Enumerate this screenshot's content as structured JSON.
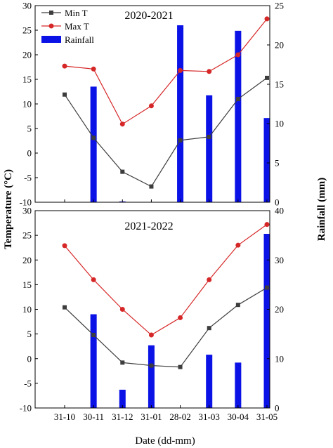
{
  "figure": {
    "left_axis_label": "Temperature (°C)",
    "right_axis_label": "Rainfall (mm)",
    "x_axis_label": "Date (dd-mm)"
  },
  "colors": {
    "min_t": "#3d3d3d",
    "max_t": "#d62728",
    "rainfall": "#0a12e6",
    "axis": "#000000"
  },
  "chart_data": [
    {
      "type": "bar+line",
      "title": "2020-2021",
      "categories": [
        "31-10",
        "30-11",
        "31-12",
        "31-01",
        "28-02",
        "31-03",
        "30-04",
        "31-05"
      ],
      "xlabel": "Date (dd-mm)",
      "ylabel": "Temperature (°C)",
      "ylim": [
        -10,
        30
      ],
      "yticks": [
        -10,
        -5,
        0,
        5,
        10,
        15,
        20,
        25,
        30
      ],
      "y2label": "Rainfall (mm)",
      "y2lim": [
        0,
        25
      ],
      "y2ticks": [
        0,
        5,
        10,
        15,
        20,
        25
      ],
      "legend": {
        "position": "top-left",
        "entries": [
          "Min T",
          "Max T",
          "Rainfall"
        ]
      },
      "series": [
        {
          "name": "Min T",
          "axis": "left",
          "kind": "line",
          "marker": "square",
          "values": [
            11.9,
            3.1,
            -3.8,
            -6.8,
            2.6,
            3.3,
            11.0,
            15.3
          ]
        },
        {
          "name": "Max T",
          "axis": "left",
          "kind": "line",
          "marker": "circle",
          "values": [
            17.7,
            17.1,
            5.9,
            9.6,
            16.8,
            16.6,
            20.0,
            27.3
          ]
        },
        {
          "name": "Rainfall",
          "axis": "right",
          "kind": "bar",
          "values": [
            0,
            14.7,
            0.1,
            0,
            22.5,
            13.6,
            21.8,
            10.7
          ]
        }
      ]
    },
    {
      "type": "bar+line",
      "title": "2021-2022",
      "categories": [
        "31-10",
        "30-11",
        "31-12",
        "31-01",
        "28-02",
        "31-03",
        "30-04",
        "31-05"
      ],
      "xlabel": "Date (dd-mm)",
      "ylabel": "Temperature (°C)",
      "ylim": [
        -10,
        30
      ],
      "yticks": [
        -10,
        -5,
        0,
        5,
        10,
        15,
        20,
        25,
        30
      ],
      "y2label": "Rainfall (mm)",
      "y2lim": [
        0,
        40
      ],
      "y2ticks": [
        0,
        10,
        20,
        30,
        40
      ],
      "series": [
        {
          "name": "Min T",
          "axis": "left",
          "kind": "line",
          "marker": "square",
          "values": [
            10.4,
            4.8,
            -0.8,
            -1.4,
            -1.7,
            6.2,
            10.9,
            14.4
          ]
        },
        {
          "name": "Max T",
          "axis": "left",
          "kind": "line",
          "marker": "circle",
          "values": [
            22.9,
            16.0,
            10.0,
            4.8,
            8.3,
            16.0,
            23.0,
            27.2
          ]
        },
        {
          "name": "Rainfall",
          "axis": "right",
          "kind": "bar",
          "values": [
            0,
            19.0,
            3.7,
            12.7,
            0,
            10.8,
            9.2,
            35.3
          ]
        }
      ]
    }
  ]
}
